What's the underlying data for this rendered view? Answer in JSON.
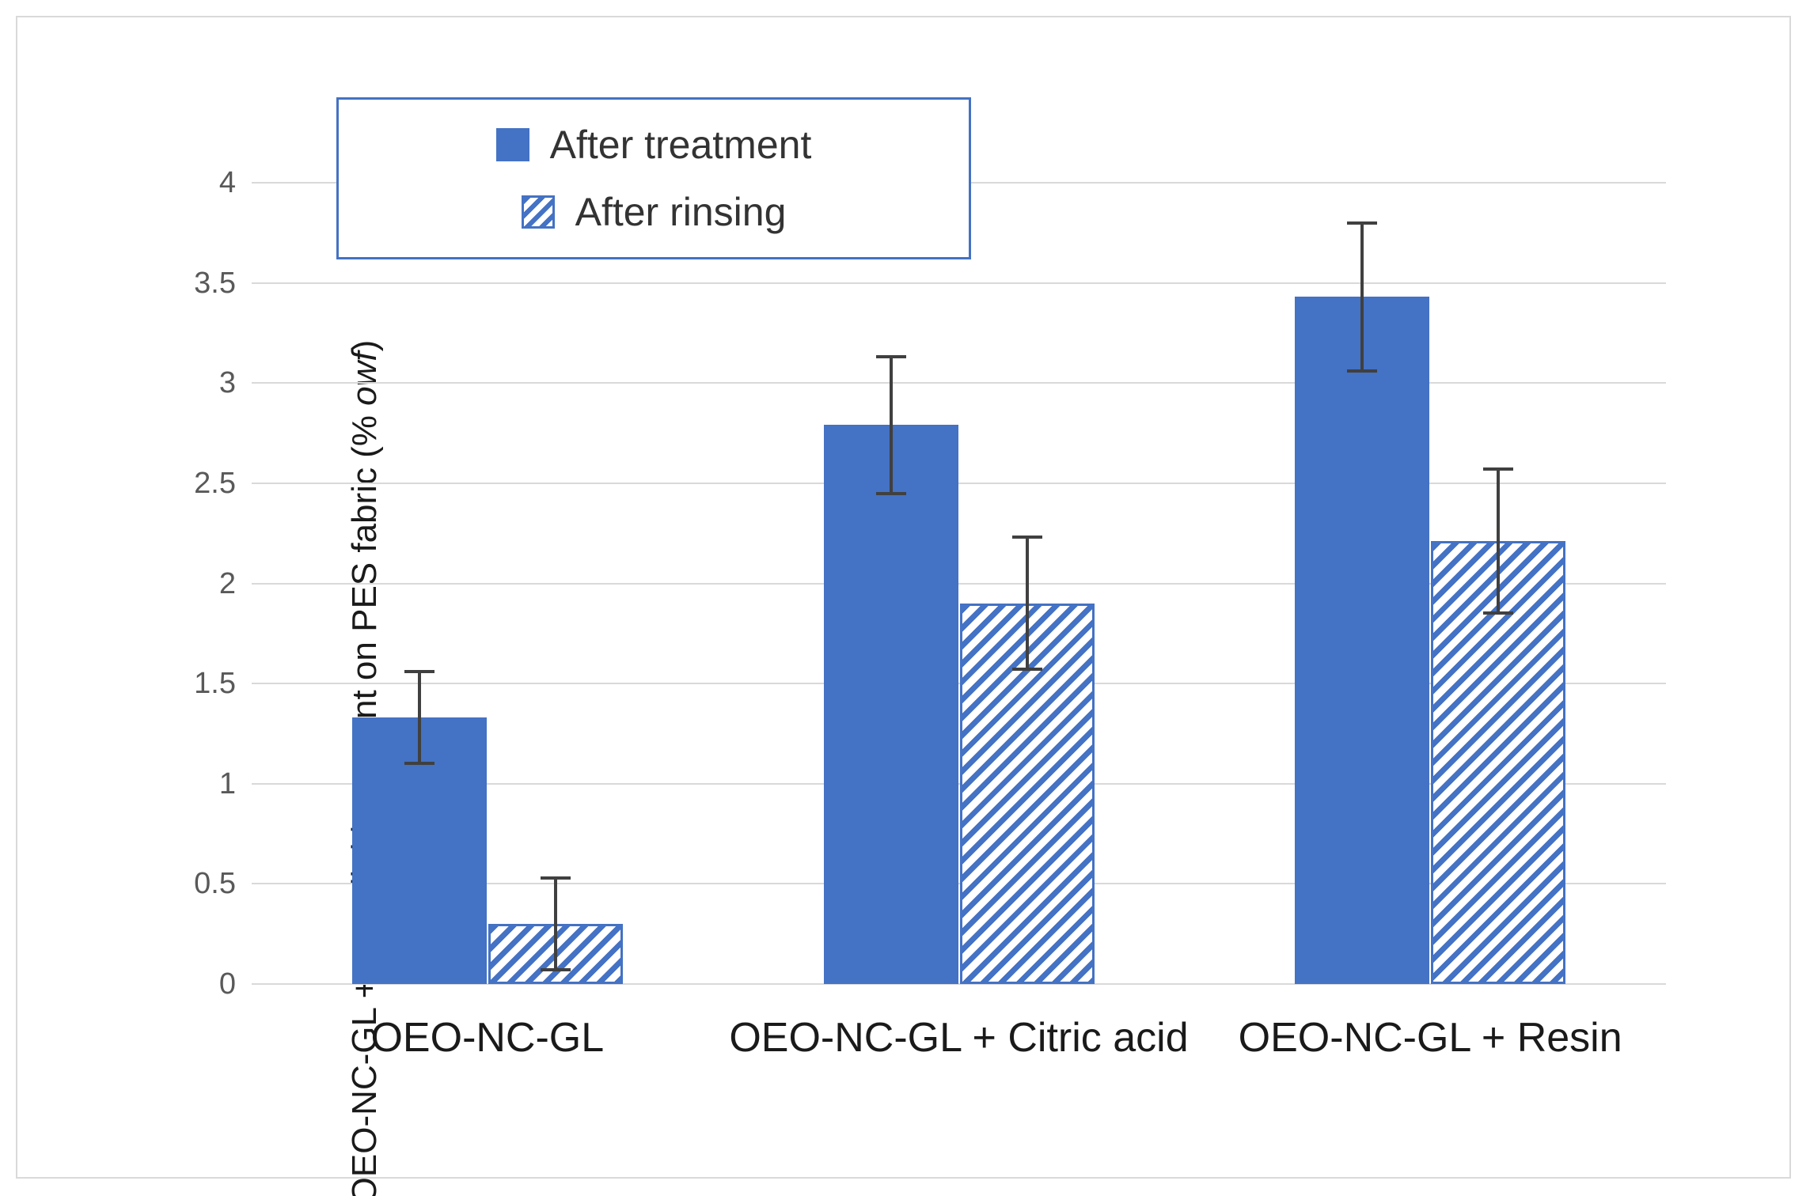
{
  "figure": {
    "background_color": "#ffffff",
    "frame_color": "#d9d9d9"
  },
  "legend": {
    "border_color": "#4472c4",
    "items": [
      {
        "label": "After treatment",
        "swatch": "solid-blue-square"
      },
      {
        "label": "After rinsing",
        "swatch": "hatched-blue-square"
      }
    ]
  },
  "y_axis": {
    "title_prefix": "OEO-NC-GL + crosslinking agent on PES fabric (% ",
    "title_italic": "owf",
    "title_suffix": ")",
    "tick_labels": [
      "0",
      "0.5",
      "1",
      "1.5",
      "2",
      "2.5",
      "3",
      "3.5",
      "4"
    ],
    "tick_values": [
      0,
      0.5,
      1,
      1.5,
      2,
      2.5,
      3,
      3.5,
      4
    ]
  },
  "chart_data": {
    "type": "bar",
    "title": "",
    "categories": [
      "OEO-NC-GL",
      "OEO-NC-GL + Citric acid",
      "OEO-NC-GL + Resin"
    ],
    "series": [
      {
        "name": "After treatment",
        "style": "solid",
        "values": [
          1.33,
          2.79,
          3.43
        ],
        "error_bars": [
          0.23,
          0.34,
          0.37
        ]
      },
      {
        "name": "After rinsing",
        "style": "hatched",
        "values": [
          0.3,
          1.9,
          2.21
        ],
        "error_bars": [
          0.23,
          0.33,
          0.36
        ]
      }
    ],
    "xlabel": "",
    "ylabel": "OEO-NC-GL + crosslinking agent on PES fabric (% owf)",
    "ylim": [
      0,
      4
    ],
    "ytick_step": 0.5,
    "grid": true,
    "legend_position": "inside-top-left",
    "colors": {
      "bar_fill": "#4472c4",
      "hatch_stripe": "#4472c4",
      "error_bar": "#404040",
      "gridline": "#d9d9d9",
      "tick_text": "#595959",
      "label_text": "#1a1a1a"
    }
  }
}
